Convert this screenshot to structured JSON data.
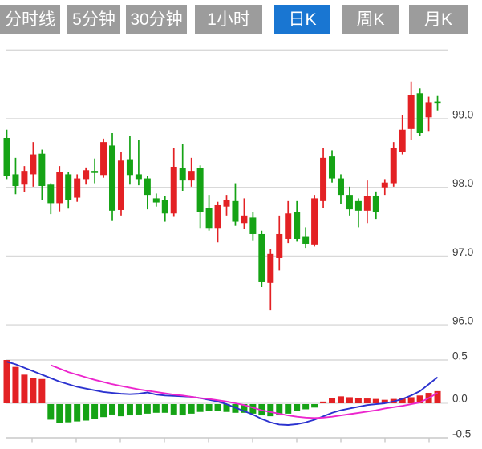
{
  "toolbar": {
    "tabs": [
      {
        "label": "分时线",
        "active": false
      },
      {
        "label": "5分钟",
        "active": false
      },
      {
        "label": "30分钟",
        "active": false
      },
      {
        "label": "1小时",
        "active": false
      },
      {
        "label": "日K",
        "active": true
      },
      {
        "label": "周K",
        "active": false
      },
      {
        "label": "月K",
        "active": false
      }
    ]
  },
  "colors": {
    "tab_inactive_bg": "#9c9c9c",
    "tab_active_bg": "#1976d2",
    "tab_text": "#ffffff",
    "candle_up": "#e32124",
    "candle_down": "#15a315",
    "diff_line": "#2b32cf",
    "dea_line": "#ec25cd",
    "grid_line": "#d9d9d9",
    "axis_line": "#c9c9c9",
    "axis_text": "#3d3d3d",
    "background": "#ffffff"
  },
  "chart_data": {
    "type": "candlestick_with_macd",
    "selected_period": "日K",
    "price_axis": {
      "tick_labels": [
        "99.0",
        "98.0",
        "97.0",
        "96.0"
      ],
      "tick_values": [
        99.0,
        98.0,
        97.0,
        96.0
      ],
      "gridline_values": [
        100.0,
        99.0,
        98.0,
        97.0,
        96.0
      ],
      "position": "right",
      "grid": true
    },
    "indicator_axis": {
      "tick_labels": [
        "0.5",
        "0.0",
        "-0.5"
      ],
      "tick_values": [
        0.5,
        0.0,
        -0.5
      ],
      "position": "right",
      "grid": true
    },
    "candles": [
      {
        "o": 98.72,
        "h": 98.84,
        "l": 98.12,
        "c": 98.16
      },
      {
        "o": 98.19,
        "h": 98.43,
        "l": 97.9,
        "c": 98.02
      },
      {
        "o": 98.04,
        "h": 98.31,
        "l": 97.93,
        "c": 98.24
      },
      {
        "o": 98.19,
        "h": 98.66,
        "l": 98.01,
        "c": 98.48
      },
      {
        "o": 98.49,
        "h": 98.55,
        "l": 97.81,
        "c": 98.02
      },
      {
        "o": 98.04,
        "h": 98.06,
        "l": 97.61,
        "c": 97.77
      },
      {
        "o": 97.77,
        "h": 98.31,
        "l": 97.65,
        "c": 98.22
      },
      {
        "o": 98.19,
        "h": 98.22,
        "l": 97.69,
        "c": 97.81
      },
      {
        "o": 97.85,
        "h": 98.19,
        "l": 97.79,
        "c": 98.13
      },
      {
        "o": 98.12,
        "h": 98.29,
        "l": 98.04,
        "c": 98.25
      },
      {
        "o": 98.24,
        "h": 98.42,
        "l": 98.06,
        "c": 98.21
      },
      {
        "o": 98.18,
        "h": 98.71,
        "l": 98.14,
        "c": 98.66
      },
      {
        "o": 98.61,
        "h": 98.79,
        "l": 97.51,
        "c": 97.66
      },
      {
        "o": 97.67,
        "h": 98.51,
        "l": 97.59,
        "c": 98.39
      },
      {
        "o": 98.41,
        "h": 98.75,
        "l": 98.04,
        "c": 98.18
      },
      {
        "o": 98.19,
        "h": 98.69,
        "l": 98.03,
        "c": 98.12
      },
      {
        "o": 98.13,
        "h": 98.17,
        "l": 97.68,
        "c": 97.89
      },
      {
        "o": 97.84,
        "h": 97.91,
        "l": 97.72,
        "c": 97.78
      },
      {
        "o": 97.82,
        "h": 97.87,
        "l": 97.5,
        "c": 97.62
      },
      {
        "o": 97.62,
        "h": 98.57,
        "l": 97.57,
        "c": 98.3
      },
      {
        "o": 98.28,
        "h": 98.63,
        "l": 97.95,
        "c": 98.1
      },
      {
        "o": 98.1,
        "h": 98.43,
        "l": 98.01,
        "c": 98.24
      },
      {
        "o": 98.28,
        "h": 98.32,
        "l": 97.41,
        "c": 97.64
      },
      {
        "o": 97.7,
        "h": 97.89,
        "l": 97.37,
        "c": 97.41
      },
      {
        "o": 97.41,
        "h": 97.79,
        "l": 97.2,
        "c": 97.74
      },
      {
        "o": 97.72,
        "h": 97.89,
        "l": 97.59,
        "c": 97.82
      },
      {
        "o": 97.8,
        "h": 98.06,
        "l": 97.44,
        "c": 97.5
      },
      {
        "o": 97.48,
        "h": 97.84,
        "l": 97.39,
        "c": 97.59
      },
      {
        "o": 97.56,
        "h": 97.64,
        "l": 97.23,
        "c": 97.32
      },
      {
        "o": 97.32,
        "h": 97.37,
        "l": 96.55,
        "c": 96.62
      },
      {
        "o": 96.61,
        "h": 97.1,
        "l": 96.21,
        "c": 97.03
      },
      {
        "o": 96.97,
        "h": 97.59,
        "l": 96.79,
        "c": 97.32
      },
      {
        "o": 97.25,
        "h": 97.8,
        "l": 97.19,
        "c": 97.62
      },
      {
        "o": 97.64,
        "h": 97.8,
        "l": 97.21,
        "c": 97.25
      },
      {
        "o": 97.29,
        "h": 97.42,
        "l": 97.12,
        "c": 97.18
      },
      {
        "o": 97.17,
        "h": 97.89,
        "l": 97.14,
        "c": 97.84
      },
      {
        "o": 97.8,
        "h": 98.57,
        "l": 97.7,
        "c": 98.43
      },
      {
        "o": 98.45,
        "h": 98.54,
        "l": 98.07,
        "c": 98.13
      },
      {
        "o": 98.13,
        "h": 98.19,
        "l": 97.76,
        "c": 97.89
      },
      {
        "o": 97.89,
        "h": 98.01,
        "l": 97.59,
        "c": 97.68
      },
      {
        "o": 97.8,
        "h": 97.84,
        "l": 97.42,
        "c": 97.66
      },
      {
        "o": 97.66,
        "h": 98.1,
        "l": 97.48,
        "c": 97.87
      },
      {
        "o": 97.88,
        "h": 97.94,
        "l": 97.54,
        "c": 97.64
      },
      {
        "o": 98.0,
        "h": 98.12,
        "l": 97.89,
        "c": 98.07
      },
      {
        "o": 98.06,
        "h": 98.66,
        "l": 98.01,
        "c": 98.57
      },
      {
        "o": 98.51,
        "h": 99.05,
        "l": 98.48,
        "c": 98.84
      },
      {
        "o": 98.85,
        "h": 99.54,
        "l": 98.69,
        "c": 99.35
      },
      {
        "o": 99.37,
        "h": 99.44,
        "l": 98.75,
        "c": 98.79
      },
      {
        "o": 99.02,
        "h": 99.32,
        "l": 98.81,
        "c": 99.24
      },
      {
        "o": 99.25,
        "h": 99.33,
        "l": 99.12,
        "c": 99.22
      }
    ],
    "macd": {
      "histogram": [
        0.5,
        0.42,
        0.33,
        0.29,
        0.28,
        -0.18,
        -0.22,
        -0.21,
        -0.2,
        -0.19,
        -0.17,
        -0.15,
        -0.12,
        -0.14,
        -0.13,
        -0.12,
        -0.11,
        -0.1,
        -0.1,
        -0.12,
        -0.13,
        -0.11,
        -0.09,
        -0.08,
        -0.08,
        -0.09,
        -0.1,
        -0.1,
        -0.11,
        -0.13,
        -0.14,
        -0.13,
        -0.11,
        -0.08,
        -0.06,
        -0.04,
        0.02,
        0.06,
        0.08,
        0.07,
        0.06,
        0.055,
        0.05,
        0.04,
        0.05,
        0.06,
        0.07,
        0.09,
        0.12,
        0.14
      ],
      "diff": [
        0.48,
        0.45,
        0.41,
        0.37,
        0.33,
        0.29,
        0.25,
        0.22,
        0.19,
        0.17,
        0.15,
        0.13,
        0.12,
        0.11,
        0.105,
        0.11,
        0.125,
        0.1,
        0.09,
        0.085,
        0.08,
        0.075,
        0.06,
        0.04,
        0.02,
        -0.01,
        -0.05,
        -0.09,
        -0.13,
        -0.18,
        -0.22,
        -0.245,
        -0.25,
        -0.24,
        -0.22,
        -0.19,
        -0.15,
        -0.11,
        -0.08,
        -0.06,
        -0.04,
        -0.02,
        -0.01,
        0.0,
        0.02,
        0.05,
        0.09,
        0.14,
        0.22,
        0.3
      ],
      "dea": [
        null,
        null,
        null,
        null,
        null,
        0.44,
        0.4,
        0.36,
        0.33,
        0.3,
        0.27,
        0.245,
        0.22,
        0.2,
        0.18,
        0.16,
        0.145,
        0.13,
        0.115,
        0.1,
        0.09,
        0.075,
        0.06,
        0.05,
        0.035,
        0.02,
        0.0,
        -0.02,
        -0.05,
        -0.08,
        -0.1,
        -0.12,
        -0.14,
        -0.155,
        -0.165,
        -0.17,
        -0.165,
        -0.155,
        -0.14,
        -0.125,
        -0.11,
        -0.095,
        -0.08,
        -0.06,
        -0.045,
        -0.03,
        -0.01,
        0.01,
        0.06,
        0.12
      ]
    }
  }
}
